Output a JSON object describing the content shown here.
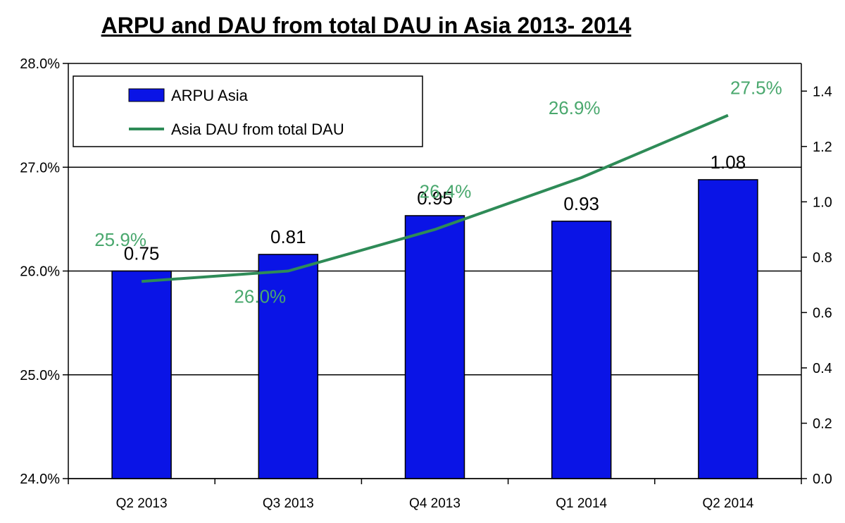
{
  "chart_data": {
    "type": "bar",
    "title": "ARPU and DAU from total DAU in Asia 2013- 2014",
    "categories": [
      "Q2 2013",
      "Q3 2013",
      "Q4 2013",
      "Q1 2014",
      "Q2 2014"
    ],
    "series": [
      {
        "name": "ARPU Asia",
        "type": "bar",
        "axis": "right",
        "color": "#0a14e6",
        "values": [
          0.75,
          0.81,
          0.95,
          0.93,
          1.08
        ],
        "value_labels": [
          "0.75",
          "0.81",
          "0.95",
          "0.93",
          "1.08"
        ]
      },
      {
        "name": "Asia DAU from total DAU",
        "type": "line",
        "axis": "left",
        "color": "#2e8b57",
        "label_color": "#4aa86e",
        "values": [
          25.9,
          26.0,
          26.4,
          26.9,
          27.5
        ],
        "value_labels": [
          "25.9%",
          "26.0%",
          "26.4%",
          "26.9%",
          "27.5%"
        ]
      }
    ],
    "y_left": {
      "range": [
        24.0,
        28.0
      ],
      "ticks": [
        "24.0%",
        "25.0%",
        "26.0%",
        "27.0%",
        "28.0%"
      ],
      "tick_values": [
        24,
        25,
        26,
        27,
        28
      ]
    },
    "y_right": {
      "range": [
        0.0,
        1.5
      ],
      "ticks": [
        "0.0",
        "0.2",
        "0.4",
        "0.6",
        "0.8",
        "1.0",
        "1.2",
        "1.4"
      ],
      "tick_values": [
        0,
        0.2,
        0.4,
        0.6,
        0.8,
        1.0,
        1.2,
        1.4
      ]
    },
    "grid": "horizontal",
    "legend": {
      "position": "top-left",
      "entries": [
        "ARPU Asia",
        "Asia DAU from total DAU"
      ]
    }
  }
}
